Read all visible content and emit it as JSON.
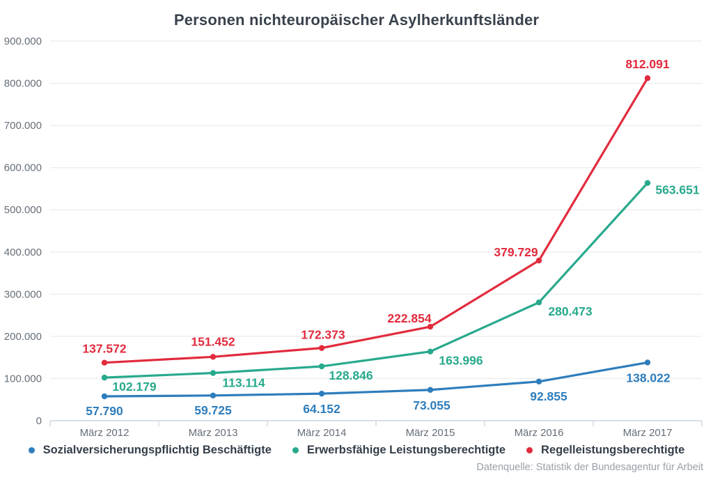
{
  "title": "Personen nichteuropäischer Asylherkunftsländer",
  "source": "Datenquelle: Statistik der Bundesagentur für Arbeit",
  "colors": {
    "grid": "#ededed",
    "axis": "#ccd7e2",
    "tick_text": "#656e78",
    "title_text": "#3a424d",
    "legend_text": "#343e49",
    "source_text": "#97a1aa"
  },
  "chart_data": {
    "type": "line",
    "title": "Personen nichteuropäischer Asylherkunftsländer",
    "categories": [
      "März 2012",
      "März 2013",
      "März 2014",
      "März 2015",
      "März 2016",
      "März 2017"
    ],
    "series": [
      {
        "name": "Sozialversicherungspflichtig Beschäftigte",
        "color": "#2e7dbc",
        "values": [
          57790,
          59725,
          64152,
          73055,
          92855,
          138022
        ],
        "labels": [
          "57.790",
          "59.725",
          "64.152",
          "73.055",
          "92.855",
          "138.022"
        ],
        "label_offsets": [
          [
            0,
            21
          ],
          [
            0,
            21
          ],
          [
            0,
            22
          ],
          [
            2,
            22
          ],
          [
            14,
            21
          ],
          [
            1,
            22
          ]
        ]
      },
      {
        "name": "Erwerbsfähige Leistungsberechtigte",
        "color": "#27a98c",
        "values": [
          102179,
          113114,
          128846,
          163996,
          280473,
          563651
        ],
        "labels": [
          "102.179",
          "113.114",
          "128.846",
          "163.996",
          "280.473",
          "563.651"
        ],
        "label_offsets": [
          [
            43,
            13
          ],
          [
            44,
            14
          ],
          [
            42,
            13
          ],
          [
            44,
            13
          ],
          [
            45,
            13
          ],
          [
            43,
            10
          ]
        ]
      },
      {
        "name": "Regelleistungsberechtigte",
        "color": "#e12b3d",
        "values": [
          137572,
          151452,
          172373,
          222854,
          379729,
          812091
        ],
        "labels": [
          "137.572",
          "151.452",
          "172.373",
          "222.854",
          "379.729",
          "812.091"
        ],
        "label_offsets": [
          [
            0,
            -20
          ],
          [
            0,
            -22
          ],
          [
            2,
            -19
          ],
          [
            -30,
            -12
          ],
          [
            -33,
            -12
          ],
          [
            0,
            -20
          ]
        ]
      }
    ],
    "xlabel": "",
    "ylabel": "",
    "ylim": [
      0,
      900000
    ],
    "ytick_step": 100000,
    "ytick_labels": [
      "0",
      "100.000",
      "200.000",
      "300.000",
      "400.000",
      "500.000",
      "600.000",
      "700.000",
      "800.000",
      "900.000"
    ],
    "grid": true,
    "legend_position": "bottom"
  }
}
